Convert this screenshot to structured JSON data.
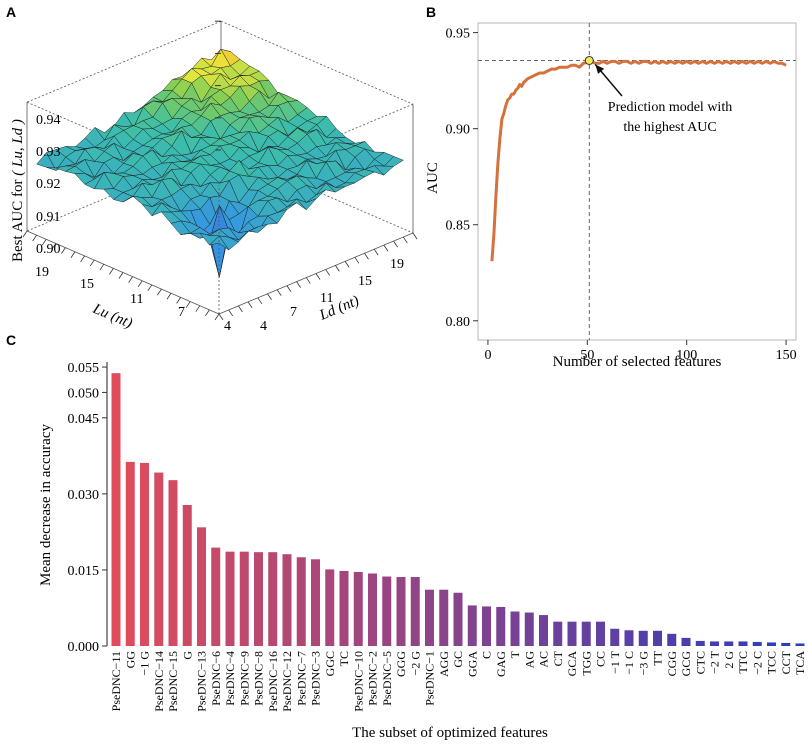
{
  "panel_labels": {
    "a": "A",
    "b": "B",
    "c": "C"
  },
  "panel_a": {
    "type": "surface3d",
    "zlabel": "Best AUC for",
    "zlabel_vars": "( Lu, Ld )",
    "z_ticks": [
      "0.90",
      "0.91",
      "0.92",
      "0.93",
      "0.94"
    ],
    "lu_label": "Lu (nt)",
    "ld_label": "Ld (nt)",
    "lu_ticks": [
      "19",
      "15",
      "11",
      "7",
      "4"
    ],
    "ld_ticks": [
      "4",
      "7",
      "11",
      "15",
      "19"
    ],
    "lu_range": [
      1,
      20
    ],
    "ld_range": [
      1,
      20
    ],
    "zlim": [
      0.9,
      0.94
    ]
  },
  "chart_data": [
    {
      "type": "line",
      "panel": "B",
      "title": "",
      "xlabel": "Number of selected features",
      "ylabel": "AUC",
      "xlim": [
        -5,
        155
      ],
      "ylim": [
        0.79,
        0.955
      ],
      "x_ticks": [
        0,
        50,
        100,
        150
      ],
      "y_ticks": [
        0.8,
        0.85,
        0.9,
        0.95
      ],
      "y_tick_labels": [
        "0.80",
        "0.85",
        "0.90",
        "0.95"
      ],
      "line_color": "#d4713d",
      "highlight": {
        "x": 51,
        "y": 0.9355
      },
      "annotation_line1": "Prediction model with",
      "annotation_line2": "the highest AUC",
      "series": [
        {
          "name": "AUC",
          "x": [
            2,
            3,
            4,
            5,
            6,
            7,
            8,
            9,
            10,
            11,
            12,
            13,
            14,
            15,
            16,
            17,
            18,
            19,
            20,
            22,
            24,
            26,
            28,
            30,
            32,
            34,
            36,
            38,
            40,
            42,
            44,
            46,
            48,
            50,
            52,
            54,
            56,
            58,
            60,
            62,
            64,
            66,
            68,
            70,
            72,
            74,
            76,
            78,
            80,
            82,
            84,
            86,
            88,
            90,
            92,
            94,
            96,
            98,
            100,
            102,
            104,
            106,
            108,
            110,
            112,
            114,
            116,
            118,
            120,
            122,
            124,
            126,
            128,
            130,
            132,
            134,
            136,
            138,
            140,
            142,
            144,
            146,
            148,
            150
          ],
          "y": [
            0.831,
            0.845,
            0.865,
            0.882,
            0.895,
            0.905,
            0.908,
            0.912,
            0.915,
            0.916,
            0.918,
            0.918,
            0.92,
            0.921,
            0.923,
            0.922,
            0.924,
            0.925,
            0.926,
            0.927,
            0.928,
            0.929,
            0.929,
            0.93,
            0.931,
            0.931,
            0.932,
            0.932,
            0.932,
            0.933,
            0.933,
            0.932,
            0.934,
            0.9345,
            0.935,
            0.934,
            0.934,
            0.935,
            0.934,
            0.935,
            0.935,
            0.934,
            0.935,
            0.935,
            0.934,
            0.935,
            0.934,
            0.935,
            0.935,
            0.934,
            0.935,
            0.934,
            0.935,
            0.934,
            0.935,
            0.934,
            0.935,
            0.934,
            0.935,
            0.934,
            0.935,
            0.934,
            0.935,
            0.934,
            0.935,
            0.934,
            0.935,
            0.934,
            0.935,
            0.934,
            0.935,
            0.934,
            0.935,
            0.934,
            0.935,
            0.934,
            0.935,
            0.934,
            0.935,
            0.934,
            0.935,
            0.934,
            0.934,
            0.933
          ]
        }
      ]
    },
    {
      "type": "bar",
      "panel": "C",
      "title": "",
      "xlabel": "The subset of optimized features",
      "ylabel": "Mean decrease in accuracy",
      "ylim": [
        0,
        0.056
      ],
      "y_ticks": [
        0,
        0.015,
        0.03,
        0.045,
        0.05,
        0.055
      ],
      "y_tick_labels": [
        "0.000",
        "0.015",
        "0.030",
        "0.045",
        "0.050",
        "0.055"
      ],
      "color_start": "#e04c5a",
      "color_end": "#2c3bbf",
      "categories": [
        "PseDNC−11",
        "GG",
        "−1 G",
        "PseDNC−14",
        "PseDNC−15",
        "G",
        "PseDNC−13",
        "PseDNC−6",
        "PseDNC−4",
        "PseDNC−9",
        "PseDNC−8",
        "PseDNC−16",
        "PseDNC−12",
        "PseDNC−7",
        "PseDNC−3",
        "GGC",
        "TC",
        "PseDNC−10",
        "PseDNC−2",
        "PseDNC−5",
        "GGG",
        "−2 G",
        "PseDNC−1",
        "AGG",
        "GC",
        "GGA",
        "C",
        "GAG",
        "T",
        "AG",
        "AC",
        "CT",
        "GCA",
        "TGG",
        "CC",
        "−1 T",
        "−1 C",
        "−3 G",
        "TT",
        "CGG",
        "GCG",
        "CTC",
        "−2 T",
        "2 G",
        "TTC",
        "−2 C",
        "TCC",
        "CCT",
        "TCA"
      ],
      "values": [
        0.0538,
        0.0363,
        0.0361,
        0.0342,
        0.0327,
        0.0278,
        0.0234,
        0.0194,
        0.0186,
        0.0186,
        0.0185,
        0.0185,
        0.0181,
        0.0175,
        0.0171,
        0.0151,
        0.0148,
        0.0146,
        0.0143,
        0.0137,
        0.0136,
        0.0136,
        0.0111,
        0.0111,
        0.0105,
        0.008,
        0.0078,
        0.0077,
        0.0068,
        0.0066,
        0.0061,
        0.0048,
        0.0048,
        0.0048,
        0.0048,
        0.0034,
        0.0031,
        0.003,
        0.003,
        0.0024,
        0.0016,
        0.001,
        0.0009,
        0.0009,
        0.0009,
        0.0008,
        0.0007,
        0.0006,
        0.0005
      ]
    }
  ]
}
